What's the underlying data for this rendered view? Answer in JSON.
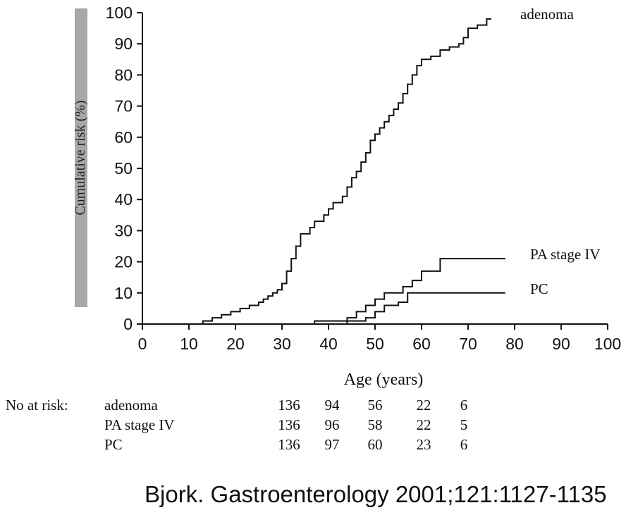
{
  "chart_data": {
    "type": "line",
    "step": true,
    "xlabel": "Age (years)",
    "ylabel": "Cumulative risk (%)",
    "xlim": [
      0,
      100
    ],
    "ylim": [
      0,
      100
    ],
    "xticks": [
      "0",
      "10",
      "20",
      "30",
      "40",
      "50",
      "60",
      "70",
      "80",
      "90",
      "100"
    ],
    "yticks": [
      "0",
      "10",
      "20",
      "30",
      "40",
      "50",
      "60",
      "70",
      "80",
      "90",
      "100"
    ],
    "grid": false,
    "legend": "direct labels at line ends",
    "series": [
      {
        "name": "adenoma",
        "points": [
          [
            12,
            0
          ],
          [
            13,
            1
          ],
          [
            15,
            2
          ],
          [
            17,
            3
          ],
          [
            19,
            4
          ],
          [
            21,
            5
          ],
          [
            23,
            6
          ],
          [
            25,
            7
          ],
          [
            26,
            8
          ],
          [
            27,
            9
          ],
          [
            28,
            10
          ],
          [
            29,
            11
          ],
          [
            30,
            13
          ],
          [
            31,
            17
          ],
          [
            32,
            21
          ],
          [
            33,
            25
          ],
          [
            34,
            29
          ],
          [
            36,
            31
          ],
          [
            37,
            33
          ],
          [
            39,
            35
          ],
          [
            40,
            37
          ],
          [
            41,
            39
          ],
          [
            43,
            41
          ],
          [
            44,
            44
          ],
          [
            45,
            47
          ],
          [
            46,
            49
          ],
          [
            47,
            52
          ],
          [
            48,
            55
          ],
          [
            49,
            59
          ],
          [
            50,
            61
          ],
          [
            51,
            63
          ],
          [
            52,
            65
          ],
          [
            53,
            67
          ],
          [
            54,
            69
          ],
          [
            55,
            71
          ],
          [
            56,
            74
          ],
          [
            57,
            77
          ],
          [
            58,
            80
          ],
          [
            59,
            83
          ],
          [
            60,
            85
          ],
          [
            62,
            86
          ],
          [
            64,
            88
          ],
          [
            66,
            89
          ],
          [
            68,
            90
          ],
          [
            69,
            92
          ],
          [
            70,
            95
          ],
          [
            72,
            96
          ],
          [
            74,
            98
          ],
          [
            75,
            98
          ]
        ]
      },
      {
        "name": "PA stage IV",
        "points": [
          [
            32,
            0
          ],
          [
            37,
            1
          ],
          [
            44,
            2
          ],
          [
            46,
            4
          ],
          [
            48,
            6
          ],
          [
            50,
            8
          ],
          [
            52,
            10
          ],
          [
            56,
            12
          ],
          [
            58,
            14
          ],
          [
            60,
            17
          ],
          [
            64,
            21
          ],
          [
            78,
            21
          ]
        ]
      },
      {
        "name": "PC",
        "points": [
          [
            32,
            0
          ],
          [
            44,
            1
          ],
          [
            48,
            2
          ],
          [
            50,
            4
          ],
          [
            52,
            6
          ],
          [
            55,
            7
          ],
          [
            57,
            10
          ],
          [
            78,
            10
          ]
        ]
      }
    ],
    "at_risk_table": {
      "label": "No at risk:",
      "x_positions": [
        30,
        40,
        50,
        60,
        70
      ],
      "rows": [
        {
          "name": "adenoma",
          "values": [
            "136",
            "94",
            "56",
            "22",
            "6"
          ]
        },
        {
          "name": "PA stage IV",
          "values": [
            "136",
            "96",
            "58",
            "22",
            "5"
          ]
        },
        {
          "name": "PC",
          "values": [
            "136",
            "97",
            "60",
            "23",
            "6"
          ]
        }
      ]
    }
  },
  "citation": "Bjork. Gastroenterology 2001;121:1127-1135",
  "colors": {
    "line": "#111111",
    "text": "#111111",
    "ylabel_band": "#a8a8a8"
  }
}
